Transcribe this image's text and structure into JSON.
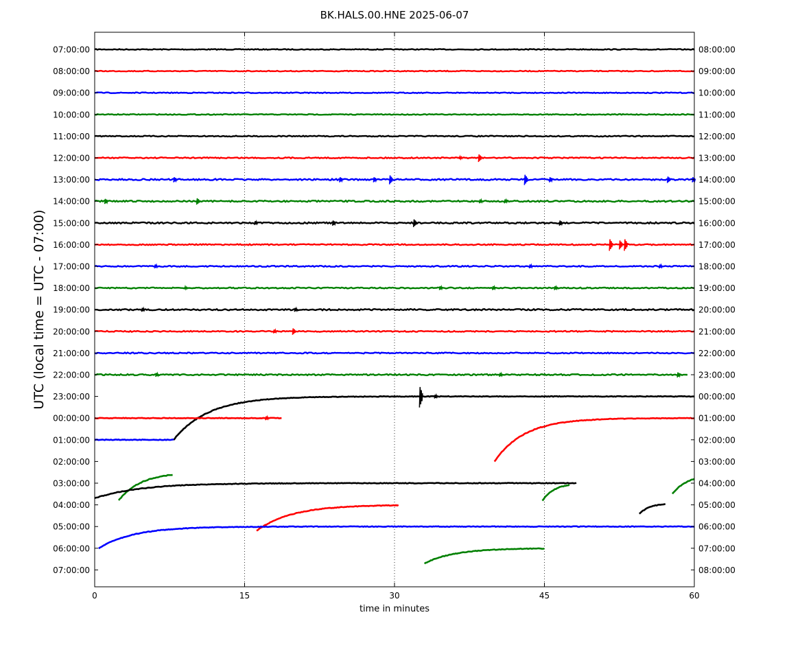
{
  "chart_data": {
    "type": "line",
    "title": "BK.HALS.00.HNE 2025-06-07",
    "xlabel": "time in minutes",
    "ylabel": "UTC (local time = UTC - 07:00)",
    "xlim": [
      0,
      60
    ],
    "x_ticks": [
      "0",
      "15",
      "30",
      "45",
      "60"
    ],
    "grid": "vertical dotted lines at 15, 30, 45",
    "left_tick_labels": [
      "07:00:00",
      "08:00:00",
      "09:00:00",
      "10:00:00",
      "11:00:00",
      "12:00:00",
      "13:00:00",
      "14:00:00",
      "15:00:00",
      "16:00:00",
      "17:00:00",
      "18:00:00",
      "19:00:00",
      "20:00:00",
      "21:00:00",
      "22:00:00",
      "23:00:00",
      "00:00:00",
      "01:00:00",
      "02:00:00",
      "03:00:00",
      "04:00:00",
      "05:00:00",
      "06:00:00",
      "07:00:00"
    ],
    "right_tick_labels": [
      "08:00:00",
      "09:00:00",
      "10:00:00",
      "11:00:00",
      "12:00:00",
      "13:00:00",
      "14:00:00",
      "15:00:00",
      "16:00:00",
      "17:00:00",
      "18:00:00",
      "19:00:00",
      "20:00:00",
      "21:00:00",
      "22:00:00",
      "23:00:00",
      "00:00:00",
      "01:00:00",
      "02:00:00",
      "03:00:00",
      "04:00:00",
      "05:00:00",
      "06:00:00",
      "07:00:00",
      "08:00:00"
    ],
    "colors": [
      "#000000",
      "#ff0000",
      "#0000ff",
      "#008000"
    ],
    "flat_traces": [
      {
        "row": 0,
        "color": "#000000",
        "x_end": 60,
        "noise": 0.6,
        "events": []
      },
      {
        "row": 1,
        "color": "#ff0000",
        "x_end": 60,
        "noise": 0.6,
        "events": []
      },
      {
        "row": 2,
        "color": "#0000ff",
        "x_end": 60,
        "noise": 0.6,
        "events": []
      },
      {
        "row": 3,
        "color": "#008000",
        "x_end": 60,
        "noise": 0.6,
        "events": []
      },
      {
        "row": 4,
        "color": "#000000",
        "x_end": 60,
        "noise": 0.7,
        "events": []
      },
      {
        "row": 5,
        "color": "#ff0000",
        "x_end": 60,
        "noise": 0.8,
        "events": [
          {
            "x": 38.4,
            "amp": 6
          },
          {
            "x": 36.5,
            "amp": 2
          }
        ]
      },
      {
        "row": 6,
        "color": "#0000ff",
        "x_end": 60,
        "noise": 1.0,
        "events": [
          {
            "x": 7.9,
            "amp": 4
          },
          {
            "x": 24.5,
            "amp": 4
          },
          {
            "x": 27.9,
            "amp": 4
          },
          {
            "x": 29.5,
            "amp": 7
          },
          {
            "x": 43.0,
            "amp": 8
          },
          {
            "x": 45.5,
            "amp": 4
          },
          {
            "x": 57.3,
            "amp": 5
          },
          {
            "x": 59.8,
            "amp": 4
          }
        ]
      },
      {
        "row": 7,
        "color": "#008000",
        "x_end": 60,
        "noise": 1.0,
        "events": [
          {
            "x": 1.0,
            "amp": 4
          },
          {
            "x": 10.2,
            "amp": 5
          },
          {
            "x": 38.5,
            "amp": 3
          },
          {
            "x": 41.0,
            "amp": 3
          }
        ]
      },
      {
        "row": 8,
        "color": "#000000",
        "x_end": 60,
        "noise": 1.0,
        "events": [
          {
            "x": 16.0,
            "amp": 3
          },
          {
            "x": 23.8,
            "amp": 4
          },
          {
            "x": 31.9,
            "amp": 6
          },
          {
            "x": 46.5,
            "amp": 4
          }
        ]
      },
      {
        "row": 9,
        "color": "#ff0000",
        "x_end": 60,
        "noise": 0.8,
        "events": [
          {
            "x": 51.5,
            "amp": 9
          },
          {
            "x": 52.5,
            "amp": 7
          },
          {
            "x": 53.0,
            "amp": 9
          }
        ]
      },
      {
        "row": 10,
        "color": "#0000ff",
        "x_end": 60,
        "noise": 0.8,
        "events": [
          {
            "x": 6.0,
            "amp": 3
          },
          {
            "x": 43.5,
            "amp": 3
          },
          {
            "x": 56.5,
            "amp": 3
          }
        ]
      },
      {
        "row": 11,
        "color": "#008000",
        "x_end": 60,
        "noise": 0.8,
        "events": [
          {
            "x": 9.0,
            "amp": 2
          },
          {
            "x": 34.5,
            "amp": 3
          },
          {
            "x": 39.8,
            "amp": 3
          },
          {
            "x": 46.0,
            "amp": 3
          }
        ]
      },
      {
        "row": 12,
        "color": "#000000",
        "x_end": 60,
        "noise": 1.0,
        "events": [
          {
            "x": 4.7,
            "amp": 3
          },
          {
            "x": 20.0,
            "amp": 3
          }
        ]
      },
      {
        "row": 13,
        "color": "#ff0000",
        "x_end": 60,
        "noise": 0.8,
        "events": [
          {
            "x": 17.9,
            "amp": 3
          },
          {
            "x": 19.8,
            "amp": 5
          }
        ]
      },
      {
        "row": 14,
        "color": "#0000ff",
        "x_end": 60,
        "noise": 0.8,
        "events": []
      },
      {
        "row": 15,
        "color": "#008000",
        "x_end": 59.4,
        "noise": 0.9,
        "events": [
          {
            "x": 6.1,
            "amp": 3
          },
          {
            "x": 40.5,
            "amp": 3
          },
          {
            "x": 58.3,
            "amp": 4
          }
        ]
      }
    ],
    "drift_segments": [
      {
        "color": "#000000",
        "row_start": 18.0,
        "row_end": 16.0,
        "x_start": 7.9,
        "x_end": 60,
        "tau": 3.5,
        "events": [
          {
            "x": 32.5,
            "amp": 16
          },
          {
            "x": 34.0,
            "amp": 3
          }
        ]
      },
      {
        "color": "#ff0000",
        "row_start": 17.0,
        "row_end": 17.0,
        "x_start": 0,
        "x_end": 18.7,
        "tau": 1,
        "events": [
          {
            "x": 17.1,
            "amp": 3
          }
        ]
      },
      {
        "color": "#0000ff",
        "row_start": 18.0,
        "row_end": 18.0,
        "x_start": 0,
        "x_end": 7.9,
        "tau": 1,
        "events": []
      },
      {
        "color": "#ff0000",
        "row_start": 19.0,
        "row_end": 17.0,
        "x_start": 40.0,
        "x_end": 60,
        "tau": 3.0,
        "events": []
      },
      {
        "color": "#008000",
        "row_start": 20.8,
        "row_end": 19.5,
        "x_start": 2.4,
        "x_end": 7.8,
        "tau": 2.2,
        "events": []
      },
      {
        "color": "#000000",
        "row_start": 20.7,
        "row_end": 20.0,
        "x_start": 0,
        "x_end": 48.2,
        "tau": 4.5,
        "events": []
      },
      {
        "color": "#008000",
        "row_start": 20.8,
        "row_end": 20.0,
        "x_start": 44.8,
        "x_end": 47.5,
        "tau": 1.2,
        "events": []
      },
      {
        "color": "#008000",
        "row_start": 20.5,
        "row_end": 19.6,
        "x_start": 57.8,
        "x_end": 60,
        "tau": 1.5,
        "events": []
      },
      {
        "color": "#000000",
        "row_start": 21.4,
        "row_end": 20.9,
        "x_start": 54.5,
        "x_end": 57.1,
        "tau": 1.2,
        "events": []
      },
      {
        "color": "#ff0000",
        "row_start": 22.2,
        "row_end": 21.0,
        "x_start": 16.2,
        "x_end": 30.4,
        "tau": 3.5,
        "events": []
      },
      {
        "color": "#0000ff",
        "row_start": 23.0,
        "row_end": 22.0,
        "x_start": 0.4,
        "x_end": 60,
        "tau": 3.5,
        "events": []
      },
      {
        "color": "#008000",
        "row_start": 23.7,
        "row_end": 23.0,
        "x_start": 33.0,
        "x_end": 45.0,
        "tau": 3.0,
        "events": []
      }
    ]
  }
}
